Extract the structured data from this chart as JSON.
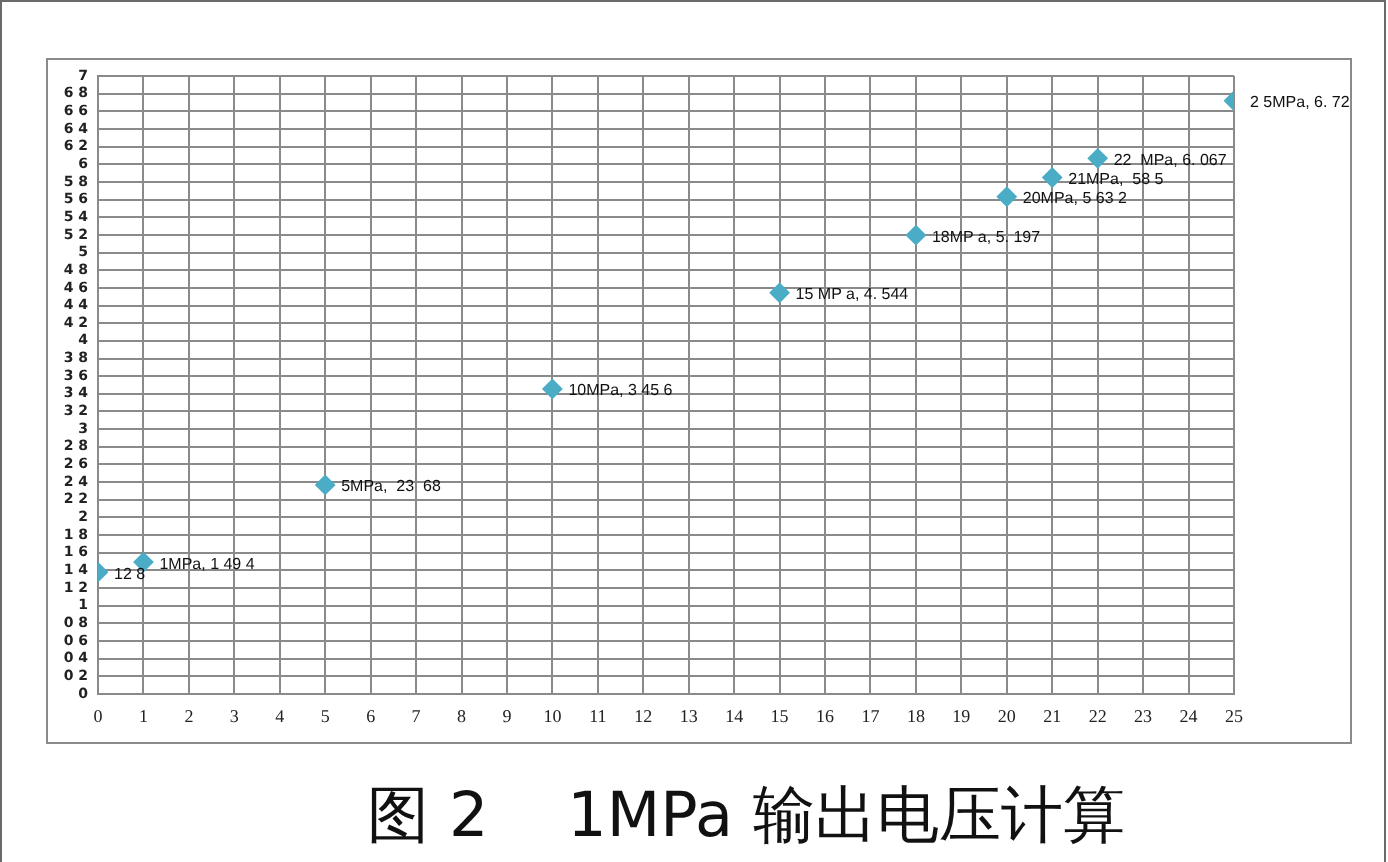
{
  "chart_data": {
    "type": "scatter",
    "title": "图 2    1MPa 输出电压计算",
    "x": [
      0,
      1,
      5,
      10,
      15,
      18,
      20,
      21,
      22,
      25
    ],
    "values": [
      1.38,
      1.494,
      2.368,
      3.456,
      4.544,
      5.197,
      5.632,
      5.85,
      6.067,
      6.72
    ],
    "value_labels": [
      "12 8",
      "1MPa, 1 49 4",
      "5MPa,  23  68",
      "10MPa, 3 45 6",
      "15 MP a, 4. 544",
      "18MP a, 5. 197",
      "20MPa, 5 63 2",
      "21MPa,  58 5",
      "22  MPa, 6. 067",
      "2 5MPa, 6. 72"
    ],
    "color": "#4bacc6",
    "marker": "diamond",
    "xlim": [
      0,
      25
    ],
    "xticks": [
      0,
      1,
      2,
      3,
      4,
      5,
      6,
      7,
      8,
      9,
      10,
      11,
      12,
      13,
      14,
      15,
      16,
      17,
      18,
      19,
      20,
      21,
      22,
      23,
      24,
      25
    ],
    "ylim": [
      0,
      7
    ],
    "yticks": [
      0,
      {
        "value": 0.2,
        "label": "0 2"
      },
      {
        "value": 0.4,
        "label": "0 4"
      },
      {
        "value": 0.6,
        "label": "0 6"
      },
      {
        "value": 0.8,
        "label": "0 8"
      },
      1,
      {
        "value": 1.2,
        "label": "1 2"
      },
      {
        "value": 1.4,
        "label": "1 4"
      },
      {
        "value": 1.6,
        "label": "1 6"
      },
      {
        "value": 1.8,
        "label": "1 8"
      },
      2,
      {
        "value": 2.2,
        "label": "2 2"
      },
      {
        "value": 2.4,
        "label": "2 4"
      },
      {
        "value": 2.6,
        "label": "2 6"
      },
      {
        "value": 2.8,
        "label": "2 8"
      },
      3,
      {
        "value": 3.2,
        "label": "3 2"
      },
      {
        "value": 3.4,
        "label": "3 4"
      },
      {
        "value": 3.6,
        "label": "3 6"
      },
      {
        "value": 3.8,
        "label": "3 8"
      },
      4,
      {
        "value": 4.2,
        "label": "4 2"
      },
      {
        "value": 4.4,
        "label": "4 4"
      },
      {
        "value": 4.6,
        "label": "4 6"
      },
      {
        "value": 4.8,
        "label": "4 8"
      },
      5,
      {
        "value": 5.2,
        "label": "5 2"
      },
      {
        "value": 5.4,
        "label": "5 4"
      },
      {
        "value": 5.6,
        "label": "5 6"
      },
      {
        "value": 5.8,
        "label": "5 8"
      },
      6,
      {
        "value": 6.2,
        "label": "6 2"
      },
      {
        "value": 6.4,
        "label": "6 4"
      },
      {
        "value": 6.6,
        "label": "6 6"
      },
      {
        "value": 6.8,
        "label": "6 8"
      },
      7
    ],
    "grid": true
  }
}
